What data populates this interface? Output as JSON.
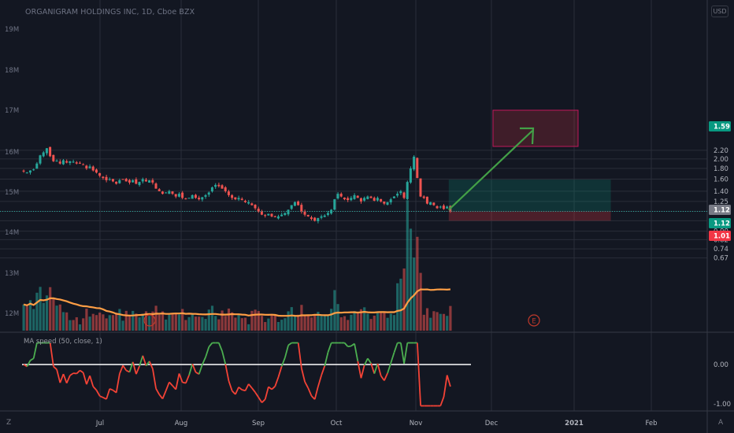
{
  "header": {
    "title": "ORGANIGRAM HOLDINGS INC, 1D, Cboe BZX",
    "currency_button": "USD"
  },
  "indicator": {
    "label": "MA speed (50, close, 1)"
  },
  "corner_buttons": {
    "left": "Z",
    "right": "A"
  },
  "event_marker": "E",
  "chart_data": {
    "type": "candlestick",
    "price_axis_ticks": [
      "2.20",
      "2.00",
      "1.80",
      "1.60",
      "1.40",
      "1.25",
      "1.12",
      "1.01",
      "0.90",
      "0.82",
      "0.74",
      "0.67"
    ],
    "volume_axis_ticks": [
      "19M",
      "18M",
      "17M",
      "16M",
      "15M",
      "14M",
      "13M",
      "12M"
    ],
    "indicator_axis_ticks": [
      "0.00",
      "-1.00"
    ],
    "x_labels": [
      "Jul",
      "Aug",
      "Sep",
      "Oct",
      "Nov",
      "Dec",
      "2021",
      "Feb"
    ],
    "price_tags": [
      {
        "label": "1.59",
        "color": "#089981"
      },
      {
        "label": "1.12",
        "color": "#787b86"
      },
      {
        "label": "1.12",
        "color": "#089981"
      },
      {
        "label": "1.01",
        "color": "#f23645"
      }
    ],
    "colors": {
      "up": "#26a69a",
      "down": "#ef5350",
      "ma": "#ff9e45",
      "indicator_up": "#4caf50",
      "indicator_down": "#f44336"
    },
    "closes": [
      1.74,
      1.72,
      1.76,
      1.78,
      1.9,
      2.08,
      2.15,
      2.25,
      2.06,
      1.95,
      1.96,
      1.9,
      1.97,
      1.92,
      1.95,
      1.94,
      1.9,
      1.9,
      1.88,
      1.8,
      1.84,
      1.76,
      1.72,
      1.66,
      1.62,
      1.58,
      1.6,
      1.56,
      1.52,
      1.58,
      1.6,
      1.56,
      1.54,
      1.58,
      1.52,
      1.55,
      1.6,
      1.56,
      1.58,
      1.54,
      1.44,
      1.4,
      1.36,
      1.38,
      1.4,
      1.36,
      1.32,
      1.36,
      1.3,
      1.28,
      1.3,
      1.34,
      1.3,
      1.28,
      1.31,
      1.34,
      1.38,
      1.46,
      1.5,
      1.48,
      1.44,
      1.4,
      1.34,
      1.3,
      1.28,
      1.3,
      1.27,
      1.24,
      1.24,
      1.2,
      1.16,
      1.12,
      1.08,
      1.07,
      1.09,
      1.06,
      1.05,
      1.06,
      1.08,
      1.1,
      1.14,
      1.2,
      1.24,
      1.2,
      1.12,
      1.08,
      1.06,
      1.03,
      1.01,
      1.04,
      1.06,
      1.07,
      1.1,
      1.14,
      1.28,
      1.36,
      1.32,
      1.28,
      1.27,
      1.3,
      1.34,
      1.3,
      1.25,
      1.3,
      1.32,
      1.3,
      1.26,
      1.3,
      1.25,
      1.22,
      1.24,
      1.28,
      1.32,
      1.36,
      1.4,
      1.3,
      1.55,
      1.8,
      2.05,
      1.62,
      1.32,
      1.3,
      1.22,
      1.24,
      1.2,
      1.16,
      1.18,
      1.15,
      1.18,
      1.12
    ]
  },
  "trade_box": {
    "entry": 1.12,
    "target": 1.59,
    "stop": 1.01,
    "box_start_bar": 129,
    "box_end_bar": 178
  }
}
